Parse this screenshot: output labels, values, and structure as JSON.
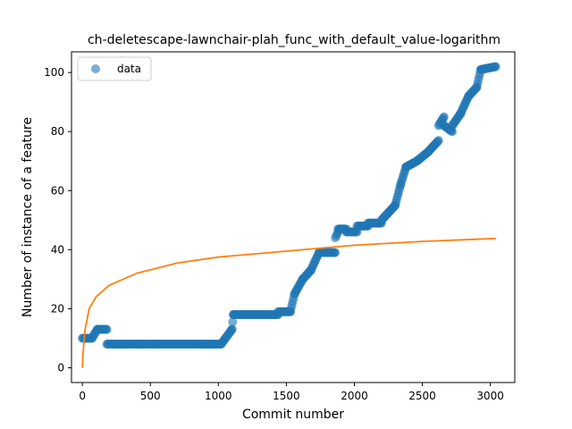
{
  "chart_data": {
    "type": "scatter",
    "title": "ch-deletescape-lawnchair-plah_func_with_default_value-logarithm",
    "xlabel": "Commit number",
    "ylabel": "Number of instance of a feature",
    "xlim": [
      -80,
      3180
    ],
    "ylim": [
      -5,
      107
    ],
    "xticks": [
      0,
      500,
      1000,
      1500,
      2000,
      2500,
      3000
    ],
    "yticks": [
      0,
      20,
      40,
      60,
      80,
      100
    ],
    "grid": false,
    "legend": {
      "position": "top-left",
      "entries": [
        "data"
      ]
    },
    "colors": {
      "data": "#1f77b4",
      "fit": "#ff7f0e"
    },
    "series": [
      {
        "name": "data",
        "kind": "scatter",
        "segments": [
          {
            "x0": 0,
            "x1": 70,
            "y": 10
          },
          {
            "x0": 70,
            "x1": 110,
            "y0": 10,
            "y1": 13
          },
          {
            "x0": 110,
            "x1": 180,
            "y": 13
          },
          {
            "x0": 180,
            "x1": 1020,
            "y": 8
          },
          {
            "x0": 1020,
            "x1": 1100,
            "y0": 8,
            "y1": 13
          },
          {
            "x0": 1100,
            "x1": 1110,
            "y0": 13,
            "y1": 18
          },
          {
            "x0": 1110,
            "x1": 1440,
            "y": 18
          },
          {
            "x0": 1440,
            "x1": 1530,
            "y": 19
          },
          {
            "x0": 1530,
            "x1": 1560,
            "y0": 19,
            "y1": 25
          },
          {
            "x0": 1560,
            "x1": 1620,
            "y0": 25,
            "y1": 30
          },
          {
            "x0": 1620,
            "x1": 1680,
            "y0": 30,
            "y1": 33
          },
          {
            "x0": 1680,
            "x1": 1740,
            "y0": 33,
            "y1": 39
          },
          {
            "x0": 1740,
            "x1": 1860,
            "y": 39
          },
          {
            "x0": 1860,
            "x1": 1880,
            "y0": 44,
            "y1": 46
          },
          {
            "x0": 1880,
            "x1": 1940,
            "y": 47
          },
          {
            "x0": 1940,
            "x1": 2020,
            "y": 46
          },
          {
            "x0": 2020,
            "x1": 2100,
            "y": 48
          },
          {
            "x0": 2100,
            "x1": 2200,
            "y": 49
          },
          {
            "x0": 2200,
            "x1": 2300,
            "y0": 50,
            "y1": 55
          },
          {
            "x0": 2300,
            "x1": 2340,
            "y0": 55,
            "y1": 62
          },
          {
            "x0": 2340,
            "x1": 2380,
            "y0": 62,
            "y1": 68
          },
          {
            "x0": 2380,
            "x1": 2460,
            "y0": 68,
            "y1": 70
          },
          {
            "x0": 2460,
            "x1": 2540,
            "y0": 70,
            "y1": 73
          },
          {
            "x0": 2540,
            "x1": 2620,
            "y0": 73,
            "y1": 77
          },
          {
            "x0": 2620,
            "x1": 2660,
            "y0": 82,
            "y1": 85
          },
          {
            "x0": 2660,
            "x1": 2720,
            "y0": 82,
            "y1": 80
          },
          {
            "x0": 2720,
            "x1": 2780,
            "y0": 82,
            "y1": 86
          },
          {
            "x0": 2780,
            "x1": 2840,
            "y0": 86,
            "y1": 92
          },
          {
            "x0": 2840,
            "x1": 2900,
            "y0": 92,
            "y1": 95
          },
          {
            "x0": 2900,
            "x1": 2930,
            "y0": 95,
            "y1": 101
          },
          {
            "x0": 2930,
            "x1": 3040,
            "y0": 101,
            "y1": 102
          }
        ]
      },
      {
        "name": "fit",
        "kind": "line",
        "function": "logarithmic",
        "points": [
          [
            0,
            0
          ],
          [
            5,
            5
          ],
          [
            20,
            13
          ],
          [
            50,
            20
          ],
          [
            100,
            24
          ],
          [
            200,
            28
          ],
          [
            400,
            32
          ],
          [
            700,
            35.5
          ],
          [
            1000,
            37.5
          ],
          [
            1500,
            39.5
          ],
          [
            2000,
            41.5
          ],
          [
            2500,
            42.8
          ],
          [
            3040,
            43.8
          ]
        ]
      }
    ]
  }
}
